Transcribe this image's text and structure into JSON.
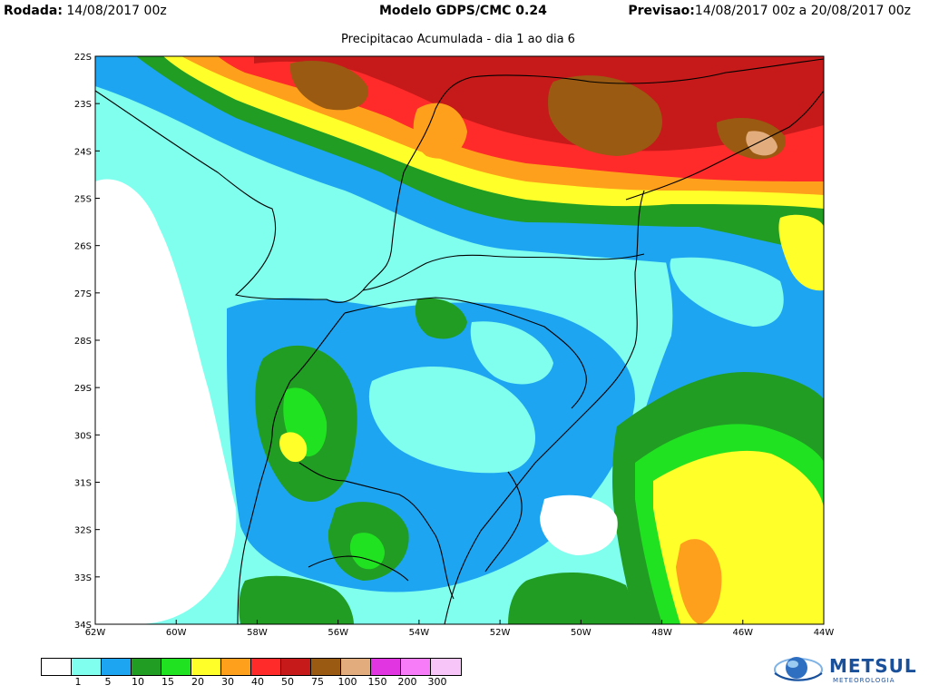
{
  "header": {
    "rodada_label": "Rodada:",
    "rodada_value": "14/08/2017 00z",
    "model": "Modelo GDPS/CMC 0.24",
    "previsao_label": "Previsao:",
    "previsao_value": "14/08/2017 00z a 20/08/2017 00z"
  },
  "subtitle": "Precipitacao Acumulada - dia 1 ao dia 6",
  "map": {
    "lat_labels": [
      "22S",
      "23S",
      "24S",
      "25S",
      "26S",
      "27S",
      "28S",
      "29S",
      "30S",
      "31S",
      "32S",
      "33S",
      "34S"
    ],
    "lon_labels": [
      "62W",
      "60W",
      "58W",
      "56W",
      "54W",
      "52W",
      "50W",
      "48W",
      "46W",
      "44W"
    ]
  },
  "legend": {
    "colors": [
      "#ffffff",
      "#80ffee",
      "#1ea5f2",
      "#219d24",
      "#21e221",
      "#ffff2a",
      "#ffa01c",
      "#ff2a2a",
      "#c61a1a",
      "#9a5a12",
      "#e2ac7c",
      "#e235e2",
      "#f77cf7",
      "#f8c5f8"
    ],
    "labels": [
      "1",
      "5",
      "10",
      "15",
      "20",
      "30",
      "40",
      "50",
      "75",
      "100",
      "150",
      "200",
      "300"
    ]
  },
  "logo": {
    "name": "METSUL",
    "tagline": "METEOROLOGIA"
  }
}
